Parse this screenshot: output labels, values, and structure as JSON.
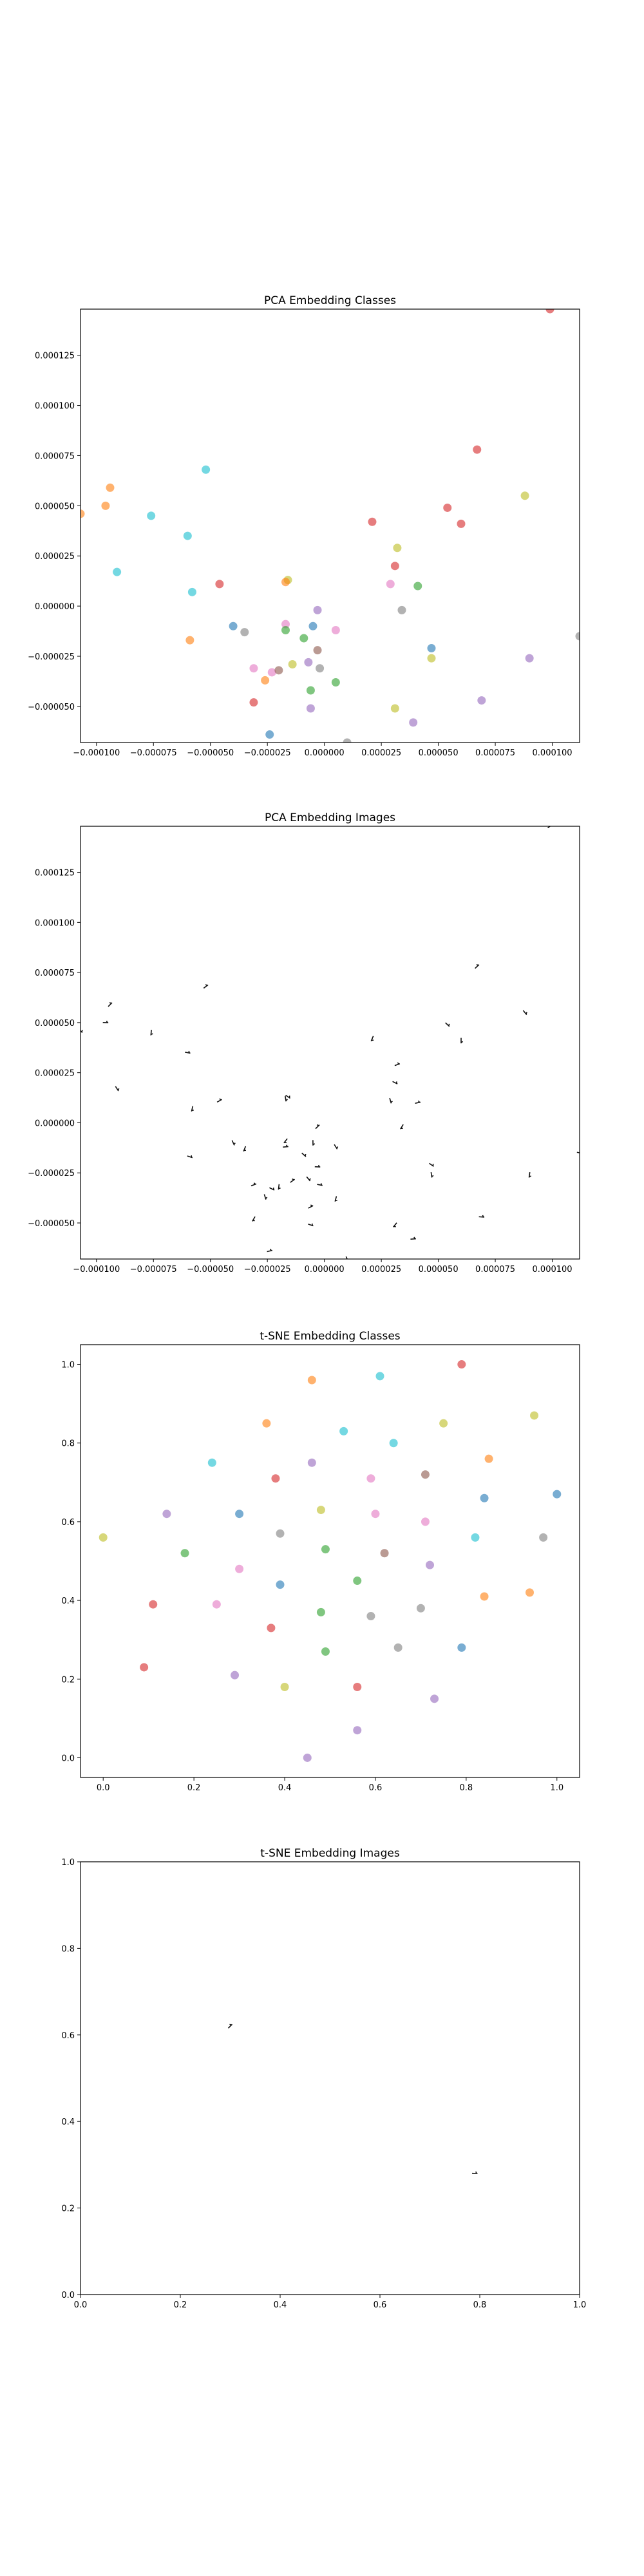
{
  "chart_data": [
    {
      "type": "scatter",
      "title": "PCA Embedding Classes",
      "xlabel": "",
      "ylabel": "",
      "xlim": [
        -0.000107,
        0.000112
      ],
      "ylim": [
        -6.8e-05,
        0.000148
      ],
      "xticks": [
        -0.0001,
        -7.5e-05,
        -5e-05,
        -2.5e-05,
        0.0,
        2.5e-05,
        5e-05,
        7.5e-05,
        0.0001
      ],
      "xticklabels": [
        "−0.000100",
        "−0.000075",
        "−0.000050",
        "−0.000025",
        "0.000000",
        "0.000025",
        "0.000050",
        "0.000075",
        "0.000100"
      ],
      "yticks": [
        -5e-05,
        -2.5e-05,
        0.0,
        2.5e-05,
        5e-05,
        7.5e-05,
        0.0001,
        0.000125
      ],
      "yticklabels": [
        "−0.000050",
        "−0.000025",
        "0.000000",
        "0.000025",
        "0.000050",
        "0.000075",
        "0.000100",
        "0.000125"
      ],
      "grid": false,
      "points": [
        {
          "x": -9.4e-05,
          "y": 5.9e-05,
          "c": "#ff7f0e"
        },
        {
          "x": -9.6e-05,
          "y": 5e-05,
          "c": "#ff7f0e"
        },
        {
          "x": -0.000107,
          "y": 4.6e-05,
          "c": "#ff7f0e"
        },
        {
          "x": -7.6e-05,
          "y": 4.5e-05,
          "c": "#17becf"
        },
        {
          "x": -5.2e-05,
          "y": 6.8e-05,
          "c": "#17becf"
        },
        {
          "x": -6e-05,
          "y": 3.5e-05,
          "c": "#17becf"
        },
        {
          "x": -9.1e-05,
          "y": 1.7e-05,
          "c": "#17becf"
        },
        {
          "x": -5.8e-05,
          "y": 7e-06,
          "c": "#17becf"
        },
        {
          "x": -4.6e-05,
          "y": 1.1e-05,
          "c": "#d62728"
        },
        {
          "x": -5.9e-05,
          "y": -1.7e-05,
          "c": "#ff7f0e"
        },
        {
          "x": -4e-05,
          "y": -1e-05,
          "c": "#1f77b4"
        },
        {
          "x": -3.5e-05,
          "y": -1.3e-05,
          "c": "#7f7f7f"
        },
        {
          "x": -3.1e-05,
          "y": -3.1e-05,
          "c": "#e377c2"
        },
        {
          "x": -2.3e-05,
          "y": -3.3e-05,
          "c": "#e377c2"
        },
        {
          "x": -2.6e-05,
          "y": -3.7e-05,
          "c": "#ff7f0e"
        },
        {
          "x": -3.1e-05,
          "y": -4.8e-05,
          "c": "#d62728"
        },
        {
          "x": -2.4e-05,
          "y": -6.4e-05,
          "c": "#1f77b4"
        },
        {
          "x": -1.6e-05,
          "y": 1.3e-05,
          "c": "#bcbd22"
        },
        {
          "x": -1.7e-05,
          "y": 1.2e-05,
          "c": "#ff7f0e"
        },
        {
          "x": -1.7e-05,
          "y": -9e-06,
          "c": "#e377c2"
        },
        {
          "x": -1.7e-05,
          "y": -1.2e-05,
          "c": "#2ca02c"
        },
        {
          "x": -9e-06,
          "y": -1.6e-05,
          "c": "#2ca02c"
        },
        {
          "x": -5e-06,
          "y": -1e-05,
          "c": "#1f77b4"
        },
        {
          "x": -3e-06,
          "y": -2e-06,
          "c": "#9467bd"
        },
        {
          "x": -3e-06,
          "y": -2.2e-05,
          "c": "#8c564b"
        },
        {
          "x": -7e-06,
          "y": -2.8e-05,
          "c": "#9467bd"
        },
        {
          "x": -2e-05,
          "y": -3.2e-05,
          "c": "#8c564b"
        },
        {
          "x": -1.4e-05,
          "y": -2.9e-05,
          "c": "#bcbd22"
        },
        {
          "x": -2e-06,
          "y": -3.1e-05,
          "c": "#7f7f7f"
        },
        {
          "x": 5e-06,
          "y": -1.2e-05,
          "c": "#e377c2"
        },
        {
          "x": 5e-06,
          "y": -3.8e-05,
          "c": "#2ca02c"
        },
        {
          "x": -6e-06,
          "y": -4.2e-05,
          "c": "#2ca02c"
        },
        {
          "x": -6e-06,
          "y": -5.1e-05,
          "c": "#9467bd"
        },
        {
          "x": 1e-05,
          "y": -6.8e-05,
          "c": "#7f7f7f"
        },
        {
          "x": 2.1e-05,
          "y": 4.2e-05,
          "c": "#d62728"
        },
        {
          "x": 3.2e-05,
          "y": 2.9e-05,
          "c": "#bcbd22"
        },
        {
          "x": 3.1e-05,
          "y": 2e-05,
          "c": "#d62728"
        },
        {
          "x": 2.9e-05,
          "y": 1.1e-05,
          "c": "#e377c2"
        },
        {
          "x": 3.4e-05,
          "y": -2e-06,
          "c": "#7f7f7f"
        },
        {
          "x": 4.1e-05,
          "y": 1e-05,
          "c": "#2ca02c"
        },
        {
          "x": 4.7e-05,
          "y": -2.1e-05,
          "c": "#1f77b4"
        },
        {
          "x": 4.7e-05,
          "y": -2.6e-05,
          "c": "#bcbd22"
        },
        {
          "x": 3.1e-05,
          "y": -5.1e-05,
          "c": "#bcbd22"
        },
        {
          "x": 3.9e-05,
          "y": -5.8e-05,
          "c": "#9467bd"
        },
        {
          "x": 5.4e-05,
          "y": 4.9e-05,
          "c": "#d62728"
        },
        {
          "x": 6e-05,
          "y": 4.1e-05,
          "c": "#d62728"
        },
        {
          "x": 6.7e-05,
          "y": 7.8e-05,
          "c": "#d62728"
        },
        {
          "x": 6.9e-05,
          "y": -4.7e-05,
          "c": "#9467bd"
        },
        {
          "x": 8.8e-05,
          "y": 5.5e-05,
          "c": "#bcbd22"
        },
        {
          "x": 9e-05,
          "y": -2.6e-05,
          "c": "#9467bd"
        },
        {
          "x": 9.9e-05,
          "y": 0.000148,
          "c": "#d62728"
        },
        {
          "x": 0.000112,
          "y": -1.5e-05,
          "c": "#7f7f7f"
        }
      ]
    },
    {
      "type": "scatter",
      "title": "PCA Embedding Images",
      "xlabel": "",
      "ylabel": "",
      "xlim": [
        -0.000107,
        0.000112
      ],
      "ylim": [
        -6.8e-05,
        0.000148
      ],
      "xticks": [
        -0.0001,
        -7.5e-05,
        -5e-05,
        -2.5e-05,
        0.0,
        2.5e-05,
        5e-05,
        7.5e-05,
        0.0001
      ],
      "xticklabels": [
        "−0.000100",
        "−0.000075",
        "−0.000050",
        "−0.000025",
        "0.000000",
        "0.000025",
        "0.000050",
        "0.000075",
        "0.000100"
      ],
      "yticks": [
        -5e-05,
        -2.5e-05,
        0.0,
        2.5e-05,
        5e-05,
        7.5e-05,
        0.0001,
        0.000125
      ],
      "yticklabels": [
        "−0.000050",
        "−0.000025",
        "0.000000",
        "0.000025",
        "0.000050",
        "0.000075",
        "0.000100",
        "0.000125"
      ],
      "grid": false,
      "marker": "image thumbnails",
      "same_points_as": "PCA Embedding Classes"
    },
    {
      "type": "scatter",
      "title": "t-SNE Embedding Classes",
      "xlabel": "",
      "ylabel": "",
      "xlim": [
        -0.05,
        1.05
      ],
      "ylim": [
        -0.05,
        1.05
      ],
      "xticks": [
        0.0,
        0.2,
        0.4,
        0.6,
        0.8,
        1.0
      ],
      "xticklabels": [
        "0.0",
        "0.2",
        "0.4",
        "0.6",
        "0.8",
        "1.0"
      ],
      "yticks": [
        0.0,
        0.2,
        0.4,
        0.6,
        0.8,
        1.0
      ],
      "yticklabels": [
        "0.0",
        "0.2",
        "0.4",
        "0.6",
        "0.8",
        "1.0"
      ],
      "grid": false,
      "points": [
        {
          "x": 0.46,
          "y": 0.96,
          "c": "#ff7f0e"
        },
        {
          "x": 0.61,
          "y": 0.97,
          "c": "#17becf"
        },
        {
          "x": 0.79,
          "y": 1.0,
          "c": "#d62728"
        },
        {
          "x": 0.36,
          "y": 0.85,
          "c": "#ff7f0e"
        },
        {
          "x": 0.53,
          "y": 0.83,
          "c": "#17becf"
        },
        {
          "x": 0.64,
          "y": 0.8,
          "c": "#17becf"
        },
        {
          "x": 0.75,
          "y": 0.85,
          "c": "#bcbd22"
        },
        {
          "x": 0.95,
          "y": 0.87,
          "c": "#bcbd22"
        },
        {
          "x": 0.24,
          "y": 0.75,
          "c": "#17becf"
        },
        {
          "x": 0.46,
          "y": 0.75,
          "c": "#9467bd"
        },
        {
          "x": 0.85,
          "y": 0.76,
          "c": "#ff7f0e"
        },
        {
          "x": 0.38,
          "y": 0.71,
          "c": "#d62728"
        },
        {
          "x": 0.59,
          "y": 0.71,
          "c": "#e377c2"
        },
        {
          "x": 0.71,
          "y": 0.72,
          "c": "#8c564b"
        },
        {
          "x": 0.84,
          "y": 0.66,
          "c": "#1f77b4"
        },
        {
          "x": 1.0,
          "y": 0.67,
          "c": "#1f77b4"
        },
        {
          "x": 0.14,
          "y": 0.62,
          "c": "#9467bd"
        },
        {
          "x": 0.3,
          "y": 0.62,
          "c": "#1f77b4"
        },
        {
          "x": 0.48,
          "y": 0.63,
          "c": "#bcbd22"
        },
        {
          "x": 0.6,
          "y": 0.62,
          "c": "#e377c2"
        },
        {
          "x": 0.71,
          "y": 0.6,
          "c": "#e377c2"
        },
        {
          "x": 0.82,
          "y": 0.56,
          "c": "#17becf"
        },
        {
          "x": 0.0,
          "y": 0.56,
          "c": "#bcbd22"
        },
        {
          "x": 0.18,
          "y": 0.52,
          "c": "#2ca02c"
        },
        {
          "x": 0.39,
          "y": 0.57,
          "c": "#7f7f7f"
        },
        {
          "x": 0.49,
          "y": 0.53,
          "c": "#2ca02c"
        },
        {
          "x": 0.62,
          "y": 0.52,
          "c": "#8c564b"
        },
        {
          "x": 0.97,
          "y": 0.56,
          "c": "#7f7f7f"
        },
        {
          "x": 0.3,
          "y": 0.48,
          "c": "#e377c2"
        },
        {
          "x": 0.72,
          "y": 0.49,
          "c": "#9467bd"
        },
        {
          "x": 0.39,
          "y": 0.44,
          "c": "#1f77b4"
        },
        {
          "x": 0.56,
          "y": 0.45,
          "c": "#2ca02c"
        },
        {
          "x": 0.11,
          "y": 0.39,
          "c": "#d62728"
        },
        {
          "x": 0.25,
          "y": 0.39,
          "c": "#e377c2"
        },
        {
          "x": 0.7,
          "y": 0.38,
          "c": "#7f7f7f"
        },
        {
          "x": 0.84,
          "y": 0.41,
          "c": "#ff7f0e"
        },
        {
          "x": 0.94,
          "y": 0.42,
          "c": "#ff7f0e"
        },
        {
          "x": 0.48,
          "y": 0.37,
          "c": "#2ca02c"
        },
        {
          "x": 0.59,
          "y": 0.36,
          "c": "#7f7f7f"
        },
        {
          "x": 0.37,
          "y": 0.33,
          "c": "#d62728"
        },
        {
          "x": 0.65,
          "y": 0.28,
          "c": "#7f7f7f"
        },
        {
          "x": 0.79,
          "y": 0.28,
          "c": "#1f77b4"
        },
        {
          "x": 0.49,
          "y": 0.27,
          "c": "#2ca02c"
        },
        {
          "x": 0.09,
          "y": 0.23,
          "c": "#d62728"
        },
        {
          "x": 0.29,
          "y": 0.21,
          "c": "#9467bd"
        },
        {
          "x": 0.4,
          "y": 0.18,
          "c": "#bcbd22"
        },
        {
          "x": 0.56,
          "y": 0.18,
          "c": "#d62728"
        },
        {
          "x": 0.73,
          "y": 0.15,
          "c": "#9467bd"
        },
        {
          "x": 0.56,
          "y": 0.07,
          "c": "#9467bd"
        },
        {
          "x": 0.45,
          "y": 0.0,
          "c": "#9467bd"
        }
      ]
    },
    {
      "type": "scatter",
      "title": "t-SNE Embedding Images",
      "xlabel": "",
      "ylabel": "",
      "xlim": [
        0.0,
        1.0
      ],
      "ylim": [
        0.0,
        1.0
      ],
      "xticks": [
        0.0,
        0.2,
        0.4,
        0.6,
        0.8,
        1.0
      ],
      "xticklabels": [
        "0.0",
        "0.2",
        "0.4",
        "0.6",
        "0.8",
        "1.0"
      ],
      "yticks": [
        0.0,
        0.2,
        0.4,
        0.6,
        0.8,
        1.0
      ],
      "yticklabels": [
        "0.0",
        "0.2",
        "0.4",
        "0.6",
        "0.8",
        "1.0"
      ],
      "grid": false,
      "marker": "image thumbnails",
      "points": [
        {
          "x": 0.3,
          "y": 0.62
        },
        {
          "x": 0.79,
          "y": 0.28
        }
      ]
    }
  ]
}
